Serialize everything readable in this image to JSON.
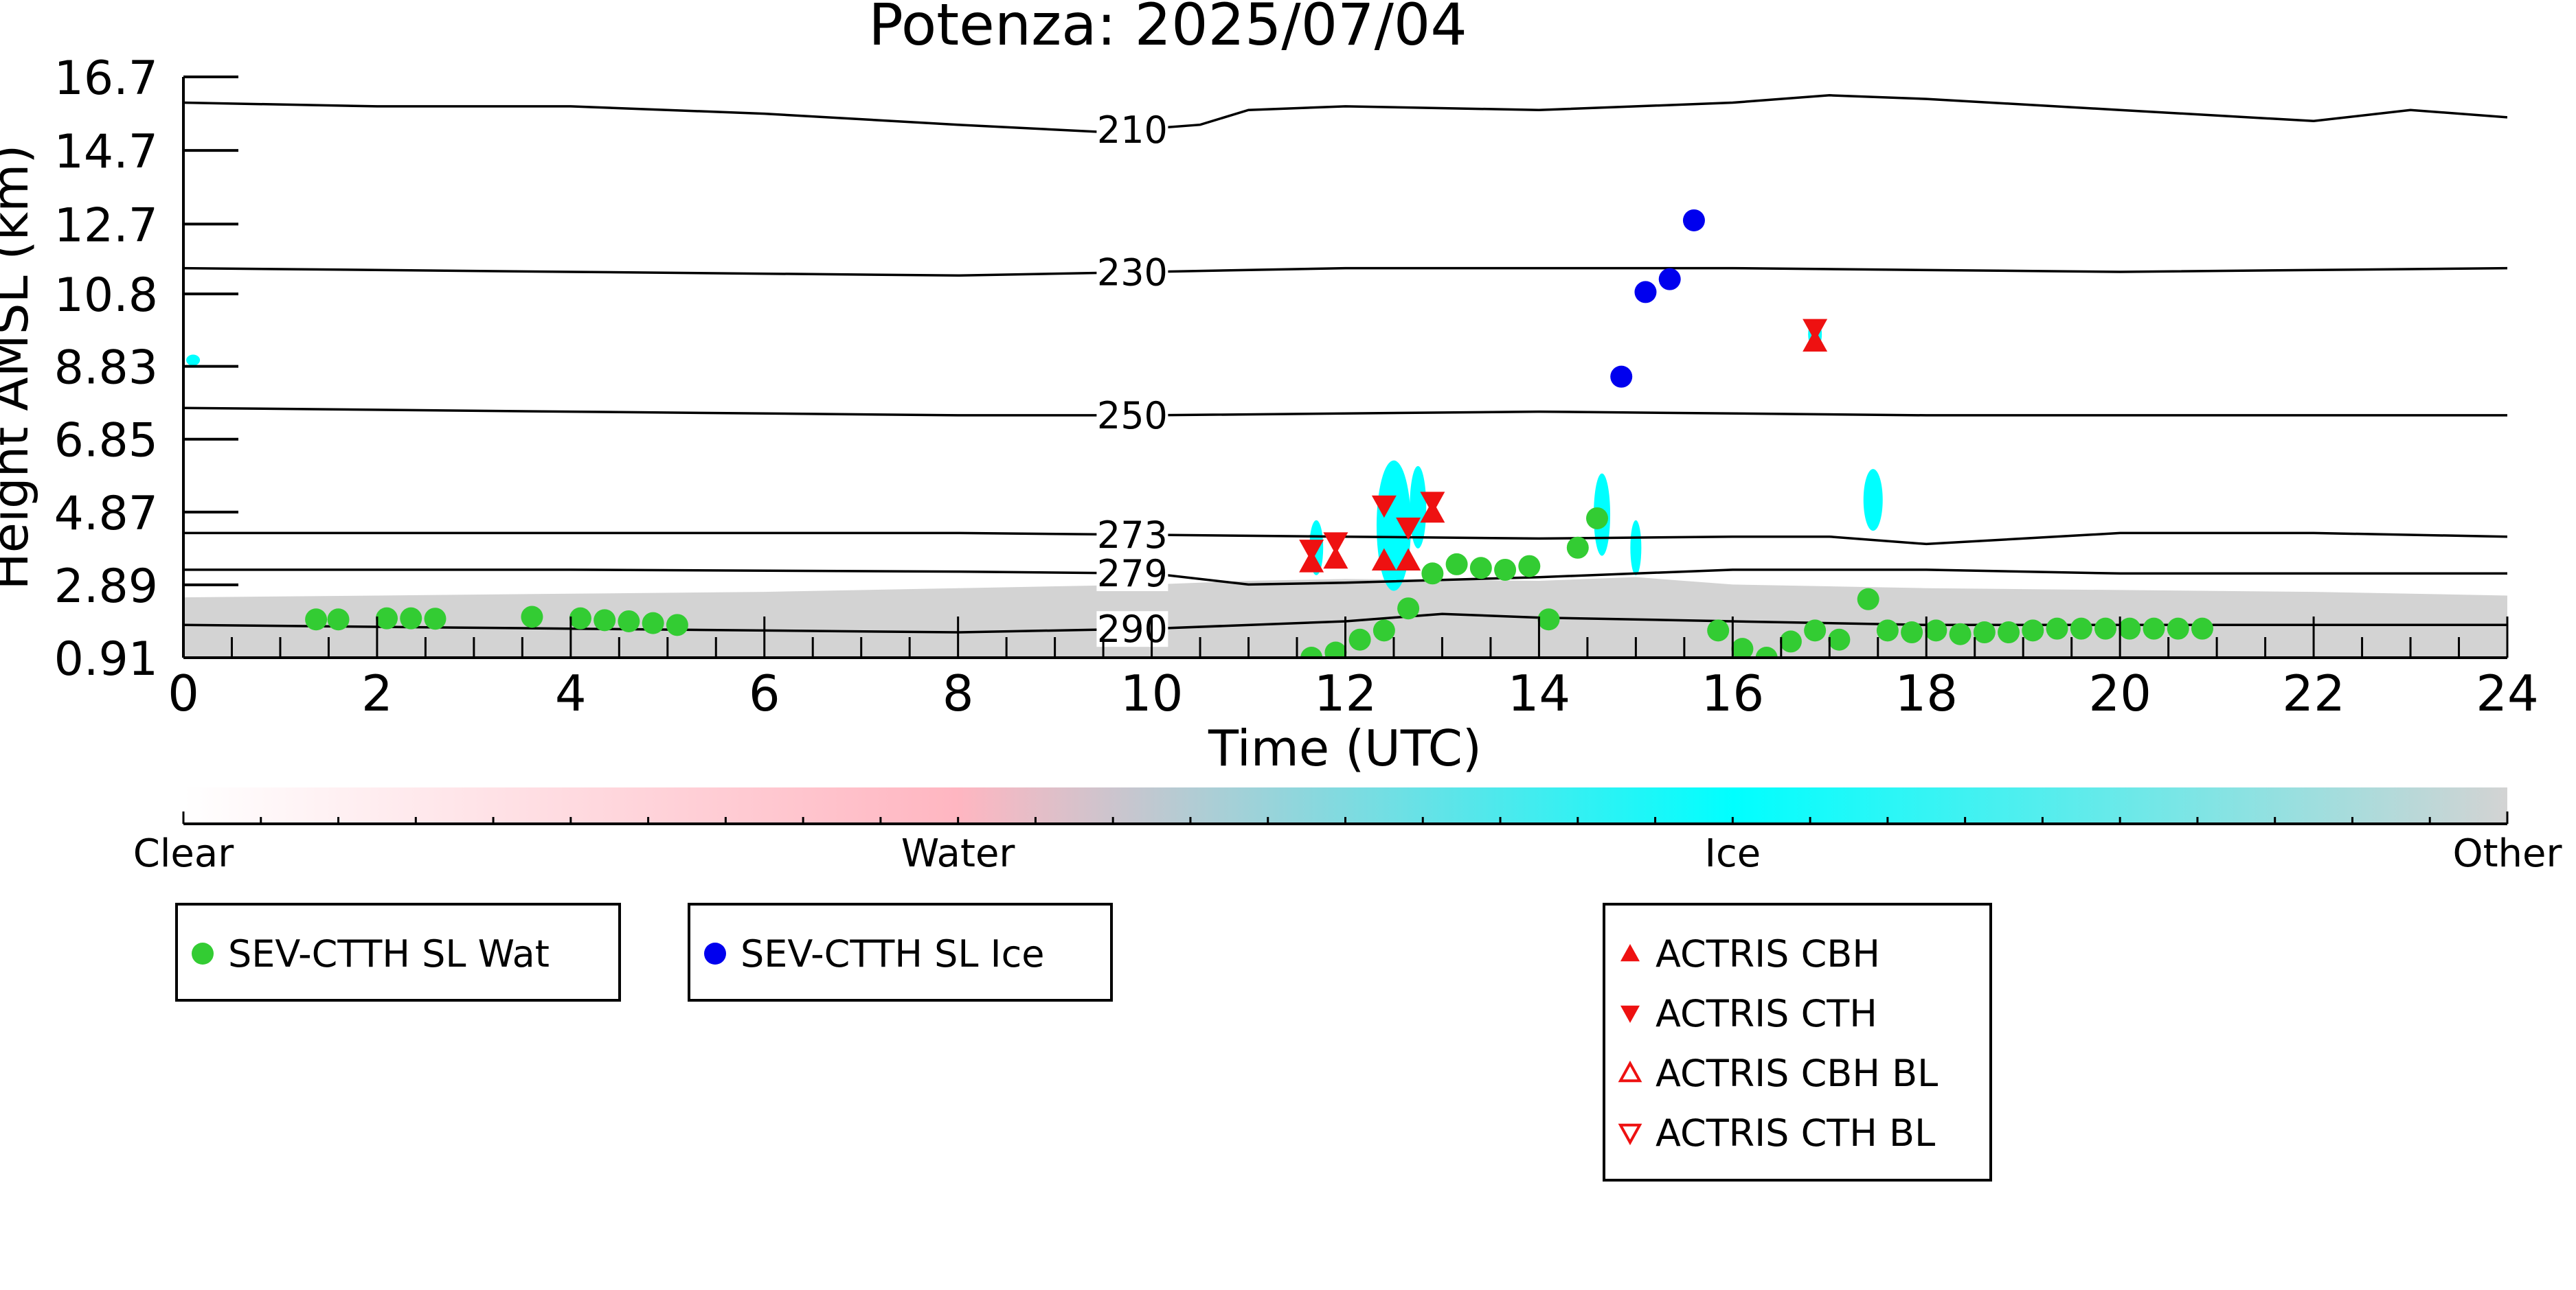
{
  "chart_data": {
    "type": "scatter",
    "title": "Potenza: 2025/07/04",
    "xlabel": "Time (UTC)",
    "ylabel": "Height AMSL (km)",
    "xlim": [
      0,
      24
    ],
    "ylim": [
      0.91,
      16.7
    ],
    "x_ticks": [
      "0",
      "2",
      "4",
      "6",
      "8",
      "10",
      "12",
      "14",
      "16",
      "18",
      "20",
      "22",
      "24"
    ],
    "y_ticks": [
      "0.91",
      "2.89",
      "4.87",
      "6.85",
      "8.83",
      "10.8",
      "12.7",
      "14.7",
      "16.7"
    ],
    "y_tick_values": [
      0.91,
      2.89,
      4.87,
      6.85,
      8.83,
      10.8,
      12.7,
      14.7,
      16.7
    ],
    "grid": false,
    "colorbar": {
      "labels": [
        "Clear",
        "Water",
        "Ice",
        "Other"
      ],
      "colors": [
        "#ffffff",
        "#ffb6c1",
        "#00ffff",
        "#d3d3d3"
      ]
    },
    "contours": [
      {
        "label": "210",
        "points": [
          [
            0,
            16.0
          ],
          [
            2,
            15.9
          ],
          [
            4,
            15.9
          ],
          [
            6,
            15.7
          ],
          [
            8,
            15.4
          ],
          [
            9.5,
            15.2
          ],
          [
            10.5,
            15.4
          ],
          [
            11,
            15.8
          ],
          [
            12,
            15.9
          ],
          [
            14,
            15.8
          ],
          [
            15,
            15.9
          ],
          [
            16,
            16.0
          ],
          [
            17,
            16.2
          ],
          [
            18,
            16.1
          ],
          [
            20,
            15.8
          ],
          [
            22,
            15.5
          ],
          [
            23,
            15.8
          ],
          [
            24,
            15.6
          ]
        ]
      },
      {
        "label": "230",
        "points": [
          [
            0,
            11.5
          ],
          [
            4,
            11.4
          ],
          [
            8,
            11.3
          ],
          [
            10,
            11.4
          ],
          [
            12,
            11.5
          ],
          [
            16,
            11.5
          ],
          [
            20,
            11.4
          ],
          [
            24,
            11.5
          ]
        ]
      },
      {
        "label": "250",
        "points": [
          [
            0,
            7.7
          ],
          [
            4,
            7.6
          ],
          [
            8,
            7.5
          ],
          [
            10,
            7.5
          ],
          [
            14,
            7.6
          ],
          [
            18,
            7.5
          ],
          [
            24,
            7.5
          ]
        ]
      },
      {
        "label": "273",
        "points": [
          [
            0,
            4.3
          ],
          [
            4,
            4.3
          ],
          [
            8,
            4.3
          ],
          [
            10,
            4.25
          ],
          [
            12,
            4.2
          ],
          [
            14,
            4.15
          ],
          [
            16,
            4.2
          ],
          [
            17,
            4.2
          ],
          [
            18,
            4.0
          ],
          [
            20,
            4.3
          ],
          [
            22,
            4.3
          ],
          [
            24,
            4.2
          ]
        ]
      },
      {
        "label": "279",
        "points": [
          [
            0,
            3.3
          ],
          [
            4,
            3.3
          ],
          [
            8,
            3.25
          ],
          [
            10,
            3.2
          ],
          [
            11,
            2.9
          ],
          [
            12,
            2.95
          ],
          [
            14,
            3.1
          ],
          [
            16,
            3.3
          ],
          [
            18,
            3.3
          ],
          [
            20,
            3.2
          ],
          [
            22,
            3.2
          ],
          [
            24,
            3.2
          ]
        ]
      },
      {
        "label": "290",
        "points": [
          [
            0,
            1.8
          ],
          [
            4,
            1.7
          ],
          [
            8,
            1.6
          ],
          [
            10,
            1.7
          ],
          [
            12,
            1.9
          ],
          [
            13,
            2.1
          ],
          [
            14,
            2.0
          ],
          [
            16,
            1.9
          ],
          [
            18,
            1.8
          ],
          [
            20,
            1.8
          ],
          [
            22,
            1.8
          ],
          [
            24,
            1.8
          ]
        ]
      }
    ],
    "series": [
      {
        "name": "SEV-CTTH SL Wat",
        "color": "#33cc33",
        "marker": "circle",
        "points": [
          [
            1.37,
            1.95
          ],
          [
            1.6,
            1.95
          ],
          [
            2.1,
            1.98
          ],
          [
            2.35,
            1.98
          ],
          [
            2.6,
            1.97
          ],
          [
            3.6,
            2.02
          ],
          [
            4.1,
            1.98
          ],
          [
            4.35,
            1.93
          ],
          [
            4.6,
            1.9
          ],
          [
            4.85,
            1.85
          ],
          [
            5.1,
            1.8
          ],
          [
            11.65,
            0.91
          ],
          [
            11.9,
            1.05
          ],
          [
            12.15,
            1.4
          ],
          [
            12.4,
            1.65
          ],
          [
            12.65,
            2.25
          ],
          [
            12.9,
            3.2
          ],
          [
            13.15,
            3.45
          ],
          [
            13.4,
            3.35
          ],
          [
            13.65,
            3.3
          ],
          [
            13.9,
            3.4
          ],
          [
            14.1,
            1.95
          ],
          [
            14.4,
            3.9
          ],
          [
            14.6,
            4.7
          ],
          [
            15.85,
            1.65
          ],
          [
            16.1,
            1.15
          ],
          [
            16.35,
            0.91
          ],
          [
            16.6,
            1.35
          ],
          [
            16.85,
            1.65
          ],
          [
            17.1,
            1.4
          ],
          [
            17.4,
            2.5
          ],
          [
            17.6,
            1.65
          ],
          [
            17.85,
            1.6
          ],
          [
            18.1,
            1.65
          ],
          [
            18.35,
            1.55
          ],
          [
            18.6,
            1.6
          ],
          [
            18.85,
            1.6
          ],
          [
            19.1,
            1.65
          ],
          [
            19.35,
            1.7
          ],
          [
            19.6,
            1.7
          ],
          [
            19.85,
            1.7
          ],
          [
            20.1,
            1.7
          ],
          [
            20.35,
            1.7
          ],
          [
            20.6,
            1.7
          ],
          [
            20.85,
            1.7
          ]
        ]
      },
      {
        "name": "SEV-CTTH SL Ice",
        "color": "#0000ee",
        "marker": "circle",
        "points": [
          [
            14.85,
            8.55
          ],
          [
            15.1,
            10.85
          ],
          [
            15.35,
            11.2
          ],
          [
            15.6,
            12.8
          ]
        ]
      },
      {
        "name": "ACTRIS CBH",
        "color": "#ee1111",
        "marker": "triangle-up",
        "points": [
          [
            11.65,
            3.5
          ],
          [
            11.9,
            3.6
          ],
          [
            12.4,
            3.55
          ],
          [
            12.65,
            3.55
          ],
          [
            12.9,
            4.85
          ],
          [
            16.85,
            9.5
          ]
        ]
      },
      {
        "name": "ACTRIS CTH",
        "color": "#ee1111",
        "marker": "triangle-down",
        "points": [
          [
            11.65,
            3.85
          ],
          [
            11.9,
            4.05
          ],
          [
            12.4,
            5.05
          ],
          [
            12.65,
            4.45
          ],
          [
            12.9,
            5.15
          ],
          [
            16.85,
            9.85
          ]
        ]
      },
      {
        "name": "ACTRIS CBH BL",
        "color": "#ee1111",
        "marker": "triangle-up-open",
        "points": []
      },
      {
        "name": "ACTRIS CTH BL",
        "color": "#ee1111",
        "marker": "triangle-down-open",
        "points": []
      }
    ],
    "legend_groups": [
      [
        "SEV-CTTH SL Wat"
      ],
      [
        "SEV-CTTH SL Ice"
      ],
      [
        "ACTRIS CBH",
        "ACTRIS CTH",
        "ACTRIS CBH BL",
        "ACTRIS CTH BL"
      ]
    ]
  }
}
